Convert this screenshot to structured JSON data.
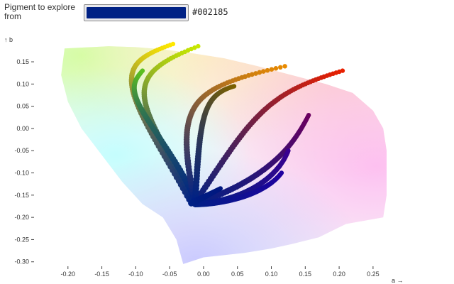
{
  "picker": {
    "label": "Pigment to explore from",
    "value": "#002185",
    "swatch_color": "#002185"
  },
  "chart_data": {
    "type": "scatter",
    "xlabel": "a →",
    "ylabel": "↑ b",
    "xlim": [
      -0.25,
      0.27
    ],
    "ylim": [
      -0.31,
      0.19
    ],
    "x_ticks": [
      "-0.20",
      "-0.15",
      "-0.10",
      "-0.05",
      "0.00",
      "0.05",
      "0.10",
      "0.15",
      "0.20",
      "0.25"
    ],
    "y_ticks": [
      "0.15",
      "0.10",
      "0.05",
      "0.00",
      "-0.05",
      "-0.10",
      "-0.15",
      "-0.20",
      "-0.25",
      "-0.30"
    ],
    "grid": false,
    "origin": [
      -0.02,
      -0.17
    ],
    "background": "gamut",
    "gamut_boundary": [
      [
        -0.205,
        0.18
      ],
      [
        -0.14,
        0.185
      ],
      [
        -0.1,
        0.183
      ],
      [
        -0.06,
        0.178
      ],
      [
        -0.02,
        0.17
      ],
      [
        0.03,
        0.158
      ],
      [
        0.08,
        0.14
      ],
      [
        0.13,
        0.12
      ],
      [
        0.18,
        0.1
      ],
      [
        0.22,
        0.08
      ],
      [
        0.25,
        0.04
      ],
      [
        0.265,
        0.0
      ],
      [
        0.27,
        -0.05
      ],
      [
        0.27,
        -0.1
      ],
      [
        0.27,
        -0.15
      ],
      [
        0.265,
        -0.2
      ],
      [
        0.21,
        -0.215
      ],
      [
        0.19,
        -0.23
      ],
      [
        0.17,
        -0.245
      ],
      [
        0.13,
        -0.26
      ],
      [
        0.1,
        -0.27
      ],
      [
        0.06,
        -0.28
      ],
      [
        0.0,
        -0.29
      ],
      [
        -0.03,
        -0.305
      ],
      [
        -0.04,
        -0.25
      ],
      [
        -0.06,
        -0.2
      ],
      [
        -0.09,
        -0.17
      ],
      [
        -0.12,
        -0.12
      ],
      [
        -0.15,
        -0.06
      ],
      [
        -0.18,
        0.0
      ],
      [
        -0.2,
        0.06
      ],
      [
        -0.21,
        0.12
      ],
      [
        -0.205,
        0.18
      ]
    ],
    "series": [
      {
        "color_end": "#ffe800",
        "points": [
          [
            -0.018,
            -0.168
          ],
          [
            -0.07,
            -0.02
          ],
          [
            -0.138,
            0.12
          ],
          [
            -0.12,
            0.15
          ],
          [
            -0.045,
            0.19
          ]
        ]
      },
      {
        "color_end": "#c8e800",
        "points": [
          [
            -0.016,
            -0.162
          ],
          [
            -0.06,
            -0.02
          ],
          [
            -0.12,
            0.09
          ],
          [
            -0.1,
            0.13
          ],
          [
            -0.008,
            0.185
          ]
        ]
      },
      {
        "color_end": "#5cc020",
        "points": [
          [
            -0.014,
            -0.155
          ],
          [
            -0.05,
            -0.03
          ],
          [
            -0.118,
            0.07
          ],
          [
            -0.11,
            0.095
          ],
          [
            -0.09,
            0.13
          ]
        ]
      },
      {
        "color_end": "#e88a00",
        "points": [
          [
            -0.014,
            -0.16
          ],
          [
            -0.032,
            -0.02
          ],
          [
            -0.035,
            0.07
          ],
          [
            -0.0,
            0.098
          ],
          [
            0.12,
            0.14
          ]
        ]
      },
      {
        "color_end": "#e82000",
        "points": [
          [
            -0.012,
            -0.165
          ],
          [
            0.04,
            -0.05
          ],
          [
            0.08,
            0.06
          ],
          [
            0.12,
            0.09
          ],
          [
            0.205,
            0.13
          ]
        ]
      },
      {
        "color_end": "#7a6000",
        "points": [
          [
            -0.012,
            -0.158
          ],
          [
            -0.007,
            -0.02
          ],
          [
            -0.003,
            0.05
          ],
          [
            0.01,
            0.08
          ],
          [
            0.045,
            0.095
          ]
        ]
      },
      {
        "color_end": "#6a0060",
        "points": [
          [
            -0.012,
            -0.168
          ],
          [
            0.07,
            -0.13
          ],
          [
            0.115,
            -0.07
          ],
          [
            0.135,
            -0.03
          ],
          [
            0.155,
            0.03
          ]
        ]
      },
      {
        "color_end": "#3a0090",
        "points": [
          [
            -0.012,
            -0.17
          ],
          [
            0.05,
            -0.165
          ],
          [
            0.09,
            -0.13
          ],
          [
            0.115,
            -0.09
          ],
          [
            0.125,
            -0.05
          ]
        ]
      },
      {
        "color_end": "#2000a0",
        "points": [
          [
            -0.012,
            -0.17
          ],
          [
            0.02,
            -0.17
          ],
          [
            0.07,
            -0.158
          ],
          [
            0.1,
            -0.13
          ],
          [
            0.115,
            -0.1
          ]
        ]
      },
      {
        "color_end": "#001880",
        "points": [
          [
            -0.014,
            -0.165
          ],
          [
            0.0,
            -0.155
          ],
          [
            0.025,
            -0.135
          ]
        ]
      }
    ]
  }
}
